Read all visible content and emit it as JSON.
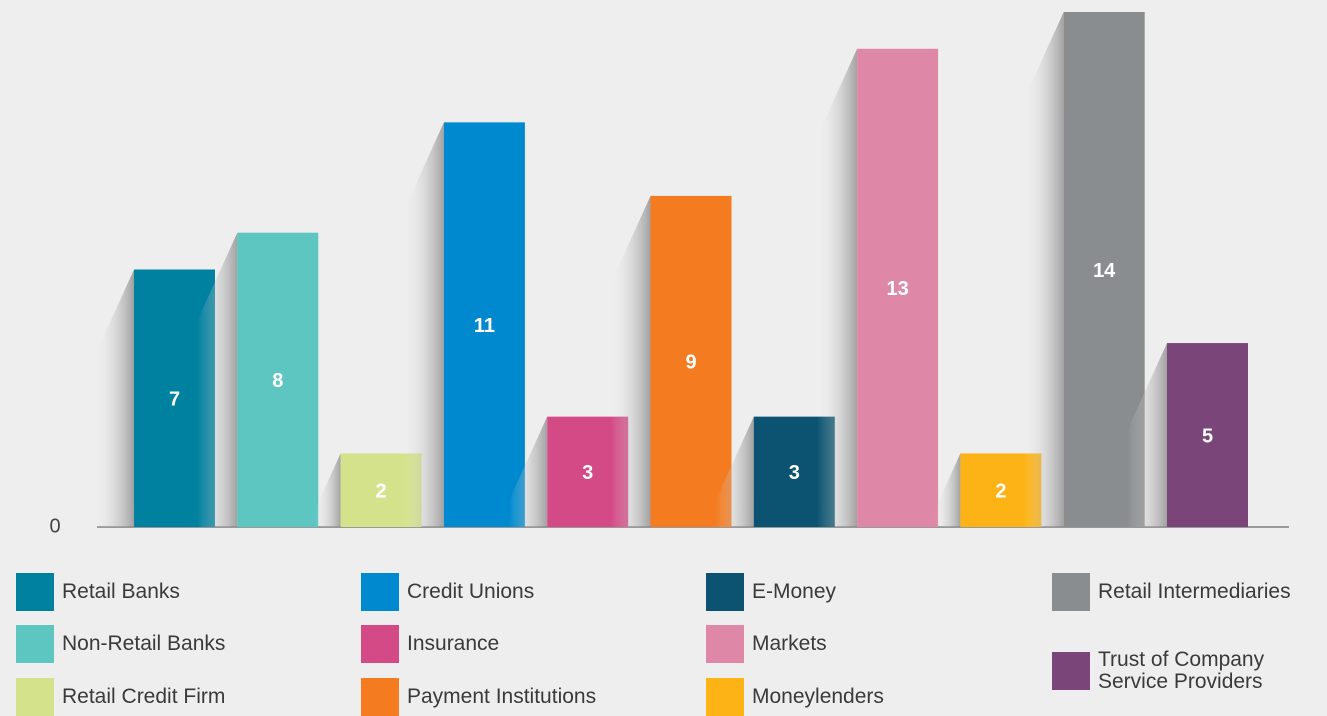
{
  "chart_data": {
    "type": "bar",
    "categories": [
      "Retail Banks",
      "Non-Retail Banks",
      "Retail Credit Firm",
      "Credit Unions",
      "Insurance",
      "Payment Institutions",
      "E-Money",
      "Markets",
      "Moneylenders",
      "Retail Intermediaries",
      "Trust of Company Service Providers"
    ],
    "values": [
      7,
      8,
      2,
      11,
      3,
      9,
      3,
      13,
      2,
      14,
      5
    ],
    "colors": [
      "#00819f",
      "#5ec6c0",
      "#d4e38b",
      "#0089cf",
      "#d44a87",
      "#f47b20",
      "#0b5370",
      "#de87a6",
      "#fdb315",
      "#8a8d8f",
      "#7a4579"
    ],
    "ylim": [
      0,
      14
    ],
    "yticks": [
      0
    ],
    "grid": false
  }
}
